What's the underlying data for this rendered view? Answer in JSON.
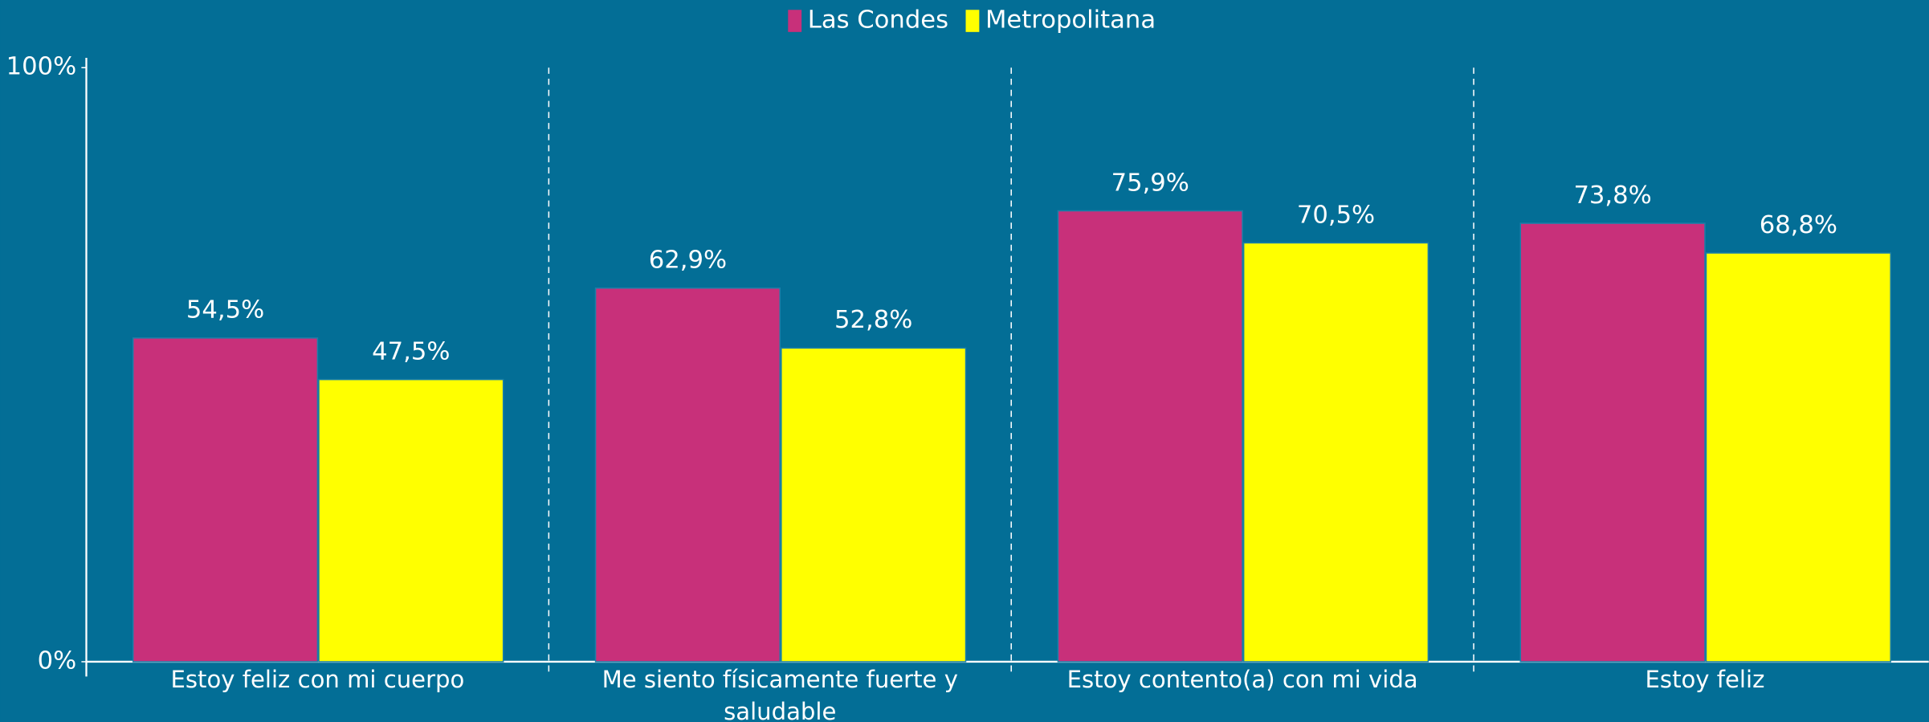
{
  "chart_data": {
    "type": "bar",
    "categories": [
      "Estoy feliz con mi cuerpo",
      "Me siento físicamente fuerte y saludable",
      "Estoy contento(a) con mi vida",
      "Estoy feliz"
    ],
    "series": [
      {
        "name": "Las Condes",
        "color": "#c8307a",
        "values": [
          54.5,
          62.9,
          75.9,
          73.8
        ],
        "value_labels": [
          "54,5%",
          "62,9%",
          "75,9%",
          "73,8%"
        ]
      },
      {
        "name": "Metropolitana",
        "color": "#ffff00",
        "values": [
          47.5,
          52.8,
          70.5,
          68.8
        ],
        "value_labels": [
          "47,5%",
          "52,8%",
          "70,5%",
          "68,8%"
        ]
      }
    ],
    "ylim": [
      0,
      100
    ],
    "yticks": [
      {
        "value": 0,
        "label": "0%"
      },
      {
        "value": 100,
        "label": "100%"
      }
    ],
    "legend": "top"
  }
}
